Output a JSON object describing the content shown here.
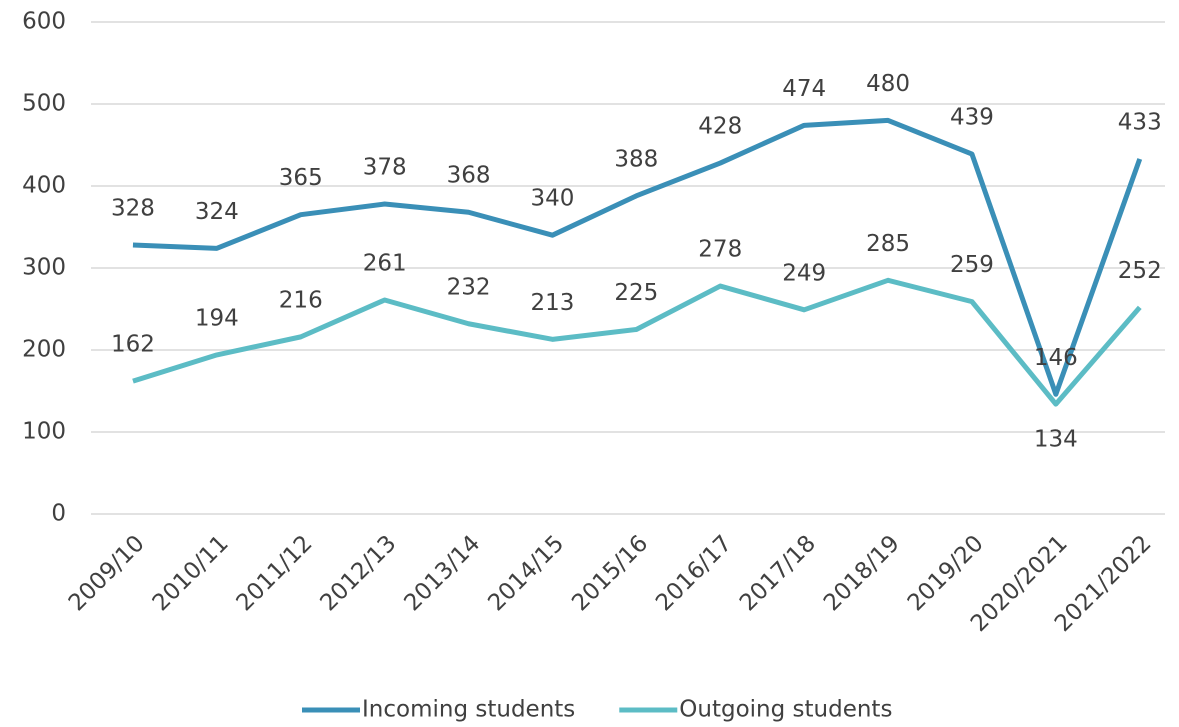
{
  "chart_data": {
    "type": "line",
    "categories": [
      "2009/10",
      "2010/11",
      "2011/12",
      "2012/13",
      "2013/14",
      "2014/15",
      "2015/16",
      "2016/17",
      "2017/18",
      "2018/19",
      "2019/20",
      "2020/2021",
      "2021/2022"
    ],
    "series": [
      {
        "name": "Incoming students",
        "color": "#3a8fb7",
        "values": [
          328,
          324,
          365,
          378,
          368,
          340,
          388,
          428,
          474,
          480,
          439,
          146,
          433
        ]
      },
      {
        "name": "Outgoing students",
        "color": "#5cbcc5",
        "values": [
          162,
          194,
          216,
          261,
          232,
          213,
          225,
          278,
          249,
          285,
          259,
          134,
          252
        ]
      }
    ],
    "ylim": [
      0,
      600
    ],
    "yticks": [
      0,
      100,
      200,
      300,
      400,
      500,
      600
    ],
    "grid": true,
    "legend": "bottom"
  }
}
